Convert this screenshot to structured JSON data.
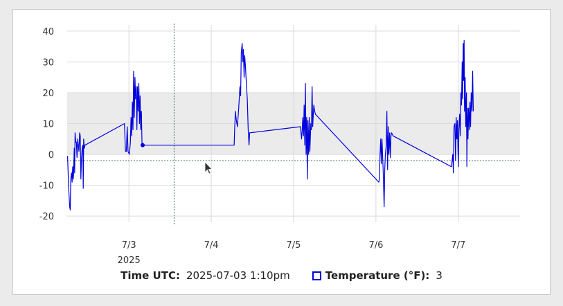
{
  "chart_data": {
    "type": "line",
    "title": "",
    "ylim": [
      -22,
      42
    ],
    "xlim": [
      "2025-07-02 06:00",
      "2025-07-07 18:00"
    ],
    "y_ticks": [
      40,
      30,
      20,
      10,
      0,
      -10,
      -20
    ],
    "x_ticks": [
      {
        "date": "2025-07-03",
        "label": "7/3",
        "sublabel": "2025"
      },
      {
        "date": "2025-07-04",
        "label": "7/4",
        "sublabel": ""
      },
      {
        "date": "2025-07-05",
        "label": "7/5",
        "sublabel": ""
      },
      {
        "date": "2025-07-06",
        "label": "7/6",
        "sublabel": ""
      },
      {
        "date": "2025-07-07",
        "label": "7/7",
        "sublabel": ""
      }
    ],
    "shaded_band": [
      0,
      20
    ],
    "reference_line": -2,
    "grid": true,
    "series": [
      {
        "name": "Temperature (°F)",
        "color": "#0000dd",
        "points": [
          [
            "2025-07-02 06:07",
            -0.5
          ],
          [
            "2025-07-02 06:24",
            -10
          ],
          [
            "2025-07-02 06:44",
            -17
          ],
          [
            "2025-07-02 06:55",
            -18
          ],
          [
            "2025-07-02 07:03",
            -8
          ],
          [
            "2025-07-02 07:18",
            -6
          ],
          [
            "2025-07-02 07:26",
            -9
          ],
          [
            "2025-07-02 07:37",
            -4
          ],
          [
            "2025-07-02 07:49",
            -8
          ],
          [
            "2025-07-02 08:03",
            2
          ],
          [
            "2025-07-02 08:11",
            -6
          ],
          [
            "2025-07-02 08:18",
            7
          ],
          [
            "2025-07-02 08:30",
            4
          ],
          [
            "2025-07-02 08:41",
            4
          ],
          [
            "2025-07-02 08:52",
            -1
          ],
          [
            "2025-07-02 09:04",
            5
          ],
          [
            "2025-07-02 09:15",
            3
          ],
          [
            "2025-07-02 09:26",
            1
          ],
          [
            "2025-07-02 09:38",
            7
          ],
          [
            "2025-07-02 09:49",
            6
          ],
          [
            "2025-07-02 10:00",
            -8
          ],
          [
            "2025-07-02 10:11",
            -1
          ],
          [
            "2025-07-02 10:23",
            2
          ],
          [
            "2025-07-02 10:34",
            3
          ],
          [
            "2025-07-02 10:41",
            -11
          ],
          [
            "2025-07-02 10:48",
            5
          ],
          [
            "2025-07-02 11:00",
            2
          ],
          [
            "2025-07-02 11:11",
            3
          ],
          [
            "2025-07-02 22:42",
            10
          ],
          [
            "2025-07-02 23:00",
            1
          ],
          [
            "2025-07-02 23:15",
            1
          ],
          [
            "2025-07-02 23:30",
            9
          ],
          [
            "2025-07-02 23:45",
            1
          ],
          [
            "2025-07-03 00:07",
            0
          ],
          [
            "2025-07-03 00:26",
            4
          ],
          [
            "2025-07-03 00:37",
            12
          ],
          [
            "2025-07-03 00:49",
            6
          ],
          [
            "2025-07-03 01:00",
            17
          ],
          [
            "2025-07-03 01:11",
            8
          ],
          [
            "2025-07-03 01:23",
            27
          ],
          [
            "2025-07-03 01:34",
            12
          ],
          [
            "2025-07-03 01:45",
            25
          ],
          [
            "2025-07-03 01:56",
            18
          ],
          [
            "2025-07-03 02:08",
            22
          ],
          [
            "2025-07-03 02:19",
            8
          ],
          [
            "2025-07-03 02:30",
            22
          ],
          [
            "2025-07-03 02:41",
            14
          ],
          [
            "2025-07-03 02:53",
            23
          ],
          [
            "2025-07-03 03:04",
            10
          ],
          [
            "2025-07-03 03:15",
            19
          ],
          [
            "2025-07-03 03:26",
            8
          ],
          [
            "2025-07-03 03:38",
            14
          ],
          [
            "2025-07-03 03:49",
            3
          ],
          [
            "2025-07-03 04:00",
            3
          ],
          [
            "2025-07-03 13:10",
            3
          ],
          [
            "2025-07-04 06:40",
            3
          ],
          [
            "2025-07-04 07:00",
            14
          ],
          [
            "2025-07-04 07:19",
            11
          ],
          [
            "2025-07-04 07:37",
            9
          ],
          [
            "2025-07-04 08:00",
            15
          ],
          [
            "2025-07-04 08:22",
            22
          ],
          [
            "2025-07-04 08:34",
            19
          ],
          [
            "2025-07-04 08:45",
            33
          ],
          [
            "2025-07-04 09:00",
            36
          ],
          [
            "2025-07-04 09:11",
            30
          ],
          [
            "2025-07-04 09:22",
            34
          ],
          [
            "2025-07-04 09:34",
            25
          ],
          [
            "2025-07-04 09:45",
            32
          ],
          [
            "2025-07-04 10:00",
            28
          ],
          [
            "2025-07-04 10:11",
            24
          ],
          [
            "2025-07-04 10:30",
            18
          ],
          [
            "2025-07-04 10:45",
            8
          ],
          [
            "2025-07-04 11:00",
            3
          ],
          [
            "2025-07-04 11:11",
            7
          ],
          [
            "2025-07-05 02:00",
            9
          ],
          [
            "2025-07-05 02:19",
            5
          ],
          [
            "2025-07-05 02:30",
            8
          ],
          [
            "2025-07-05 02:41",
            12
          ],
          [
            "2025-07-05 02:53",
            6
          ],
          [
            "2025-07-05 03:04",
            16
          ],
          [
            "2025-07-05 03:15",
            3
          ],
          [
            "2025-07-05 03:26",
            23
          ],
          [
            "2025-07-05 03:38",
            0
          ],
          [
            "2025-07-05 03:49",
            12
          ],
          [
            "2025-07-05 04:00",
            -8
          ],
          [
            "2025-07-05 04:11",
            11
          ],
          [
            "2025-07-05 04:23",
            0
          ],
          [
            "2025-07-05 04:34",
            12
          ],
          [
            "2025-07-05 04:45",
            1
          ],
          [
            "2025-07-05 05:00",
            10
          ],
          [
            "2025-07-05 05:11",
            8
          ],
          [
            "2025-07-05 05:23",
            22
          ],
          [
            "2025-07-05 05:34",
            9
          ],
          [
            "2025-07-05 05:52",
            16
          ],
          [
            "2025-07-05 06:08",
            14
          ],
          [
            "2025-07-05 06:23",
            13
          ],
          [
            "2025-07-06 00:49",
            -9
          ],
          [
            "2025-07-06 01:00",
            -8
          ],
          [
            "2025-07-06 01:11",
            0
          ],
          [
            "2025-07-06 01:23",
            5
          ],
          [
            "2025-07-06 01:34",
            -3
          ],
          [
            "2025-07-06 01:45",
            5
          ],
          [
            "2025-07-06 02:00",
            -2
          ],
          [
            "2025-07-06 02:11",
            -8
          ],
          [
            "2025-07-06 02:23",
            -17
          ],
          [
            "2025-07-06 02:34",
            -5
          ],
          [
            "2025-07-06 02:45",
            0
          ],
          [
            "2025-07-06 03:00",
            3
          ],
          [
            "2025-07-06 03:11",
            14
          ],
          [
            "2025-07-06 03:23",
            -5
          ],
          [
            "2025-07-06 03:34",
            9
          ],
          [
            "2025-07-06 03:45",
            0
          ],
          [
            "2025-07-06 04:00",
            7
          ],
          [
            "2025-07-06 04:11",
            -1
          ],
          [
            "2025-07-06 04:23",
            6
          ],
          [
            "2025-07-06 04:34",
            7
          ],
          [
            "2025-07-06 05:00",
            6
          ],
          [
            "2025-07-06 22:00",
            -4
          ],
          [
            "2025-07-06 22:23",
            0
          ],
          [
            "2025-07-06 22:34",
            -6
          ],
          [
            "2025-07-06 22:45",
            9
          ],
          [
            "2025-07-06 23:00",
            10
          ],
          [
            "2025-07-06 23:11",
            -2
          ],
          [
            "2025-07-06 23:23",
            12
          ],
          [
            "2025-07-06 23:34",
            5
          ],
          [
            "2025-07-06 23:45",
            11
          ],
          [
            "2025-07-07 00:00",
            -4
          ],
          [
            "2025-07-07 00:11",
            8
          ],
          [
            "2025-07-07 00:23",
            13
          ],
          [
            "2025-07-07 00:34",
            6
          ],
          [
            "2025-07-07 00:45",
            20
          ],
          [
            "2025-07-07 00:56",
            16
          ],
          [
            "2025-07-07 01:08",
            30
          ],
          [
            "2025-07-07 01:15",
            18
          ],
          [
            "2025-07-07 01:26",
            36
          ],
          [
            "2025-07-07 01:34",
            24
          ],
          [
            "2025-07-07 01:41",
            37
          ],
          [
            "2025-07-07 01:49",
            14
          ],
          [
            "2025-07-07 02:00",
            25
          ],
          [
            "2025-07-07 02:11",
            9
          ],
          [
            "2025-07-07 02:23",
            20
          ],
          [
            "2025-07-07 02:30",
            -4
          ],
          [
            "2025-07-07 02:38",
            15
          ],
          [
            "2025-07-07 02:49",
            5
          ],
          [
            "2025-07-07 03:00",
            15
          ],
          [
            "2025-07-07 03:11",
            8
          ],
          [
            "2025-07-07 03:23",
            17
          ],
          [
            "2025-07-07 03:34",
            9
          ],
          [
            "2025-07-07 03:45",
            20
          ],
          [
            "2025-07-07 04:00",
            14
          ],
          [
            "2025-07-07 04:11",
            27
          ],
          [
            "2025-07-07 04:23",
            14
          ]
        ]
      }
    ],
    "cursor": {
      "time": "2025-07-03 13:10",
      "value": 3
    }
  },
  "readout": {
    "time_label": "Time UTC:",
    "time_value": "2025-07-03 1:10pm",
    "series_label": "Temperature (°F):",
    "series_value": "3"
  },
  "colors": {
    "line": "#0000dd",
    "band": "#ebebeb",
    "grid": "#d9d9d9",
    "reference": "#4a7a6a"
  }
}
